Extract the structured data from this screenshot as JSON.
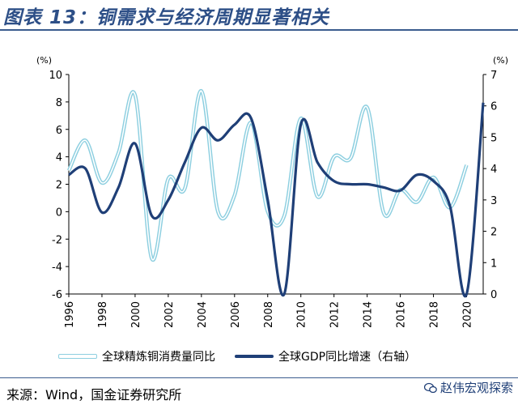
{
  "title": "图表 13：铜需求与经济周期显著相关",
  "source": "来源：Wind，国金证券研究所",
  "watermark": "赵伟宏观探索",
  "colors": {
    "copper": "#8dcfe0",
    "gdp": "#1f3f77",
    "rule": "#3b5c8e",
    "title": "#2d4f87"
  },
  "chart_data": {
    "type": "line",
    "left_axis": {
      "unit": "(%)",
      "range": [
        -6,
        10
      ],
      "ticks": [
        -6,
        -4,
        -2,
        0,
        2,
        4,
        6,
        8,
        10
      ]
    },
    "right_axis": {
      "unit": "(%)",
      "range": [
        0,
        7
      ],
      "ticks": [
        0,
        1,
        2,
        3,
        4,
        5,
        6,
        7
      ]
    },
    "x_range": [
      1996,
      2021
    ],
    "x_ticks": [
      "1996",
      "1998",
      "2000",
      "2002",
      "2004",
      "2006",
      "2008",
      "2010",
      "2012",
      "2014",
      "2016",
      "2018",
      "2020"
    ],
    "series": [
      {
        "name": "全球精炼铜消费量同比",
        "axis": "left",
        "x": [
          1996,
          1997,
          1998,
          1999,
          2000,
          2001,
          2002,
          2003,
          2004,
          2005,
          2006,
          2007,
          2008,
          2009,
          2010,
          2011,
          2012,
          2013,
          2014,
          2015,
          2016,
          2017,
          2018,
          2019,
          2020
        ],
        "values": [
          3.0,
          5.2,
          2.1,
          4.3,
          8.5,
          -3.4,
          2.4,
          1.7,
          8.8,
          0.0,
          1.2,
          6.5,
          0.0,
          -0.3,
          6.8,
          1.1,
          4.0,
          3.9,
          7.6,
          -0.1,
          1.6,
          0.7,
          2.5,
          0.3,
          3.4
        ]
      },
      {
        "name": "全球GDP同比增速（右轴）",
        "axis": "right",
        "x": [
          1996,
          1997,
          1998,
          1999,
          2000,
          2001,
          2002,
          2003,
          2004,
          2005,
          2006,
          2007,
          2008,
          2009,
          2010,
          2011,
          2012,
          2013,
          2014,
          2015,
          2016,
          2017,
          2018,
          2019,
          2020,
          2021
        ],
        "values": [
          3.8,
          4.0,
          2.6,
          3.4,
          4.8,
          2.5,
          3.0,
          4.2,
          5.3,
          4.9,
          5.4,
          5.6,
          3.0,
          0.0,
          5.4,
          4.2,
          3.6,
          3.5,
          3.5,
          3.4,
          3.3,
          3.8,
          3.6,
          2.8,
          0.0,
          6.1
        ]
      }
    ]
  }
}
